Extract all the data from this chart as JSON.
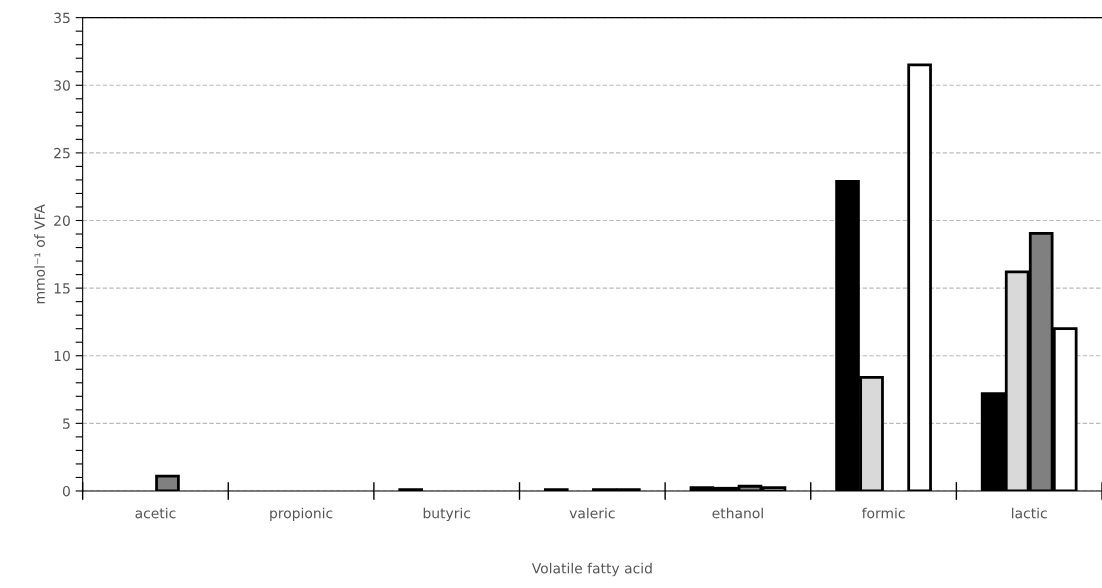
{
  "chart_data": {
    "type": "bar",
    "xlabel": "Volatile fatty acid",
    "ylabel": "mmol⁻¹ of VFA",
    "categories": [
      "acetic",
      "propionic",
      "butyric",
      "valeric",
      "ethanol",
      "formic",
      "lactic"
    ],
    "series": [
      {
        "color": "#000000",
        "values": [
          null,
          null,
          0.1,
          0.1,
          0.25,
          22.9,
          7.2
        ]
      },
      {
        "color": "#d9d9d9",
        "values": [
          null,
          null,
          null,
          null,
          0.2,
          8.4,
          16.2
        ]
      },
      {
        "color": "#808080",
        "values": [
          1.1,
          null,
          null,
          0.1,
          0.35,
          null,
          19.05
        ]
      },
      {
        "color": "#ffffff",
        "values": [
          null,
          null,
          null,
          0.1,
          0.25,
          31.5,
          12.0
        ]
      }
    ],
    "ylim": [
      0,
      35
    ],
    "yticks": [
      0,
      {
        "value": 1,
        "label": null
      },
      {
        "value": 2,
        "label": null
      },
      {
        "value": 3,
        "label": null
      },
      {
        "value": 4,
        "label": null
      },
      5,
      {
        "value": 6,
        "label": null
      },
      {
        "value": 7,
        "label": null
      },
      {
        "value": 8,
        "label": null
      },
      {
        "value": 9,
        "label": null
      },
      10,
      {
        "value": 11,
        "label": null
      },
      {
        "value": 12,
        "label": null
      },
      {
        "value": 13,
        "label": null
      },
      {
        "value": 14,
        "label": null
      },
      15,
      {
        "value": 16,
        "label": null
      },
      {
        "value": 17,
        "label": null
      },
      {
        "value": 18,
        "label": null
      },
      {
        "value": 19,
        "label": null
      },
      20,
      {
        "value": 21,
        "label": null
      },
      {
        "value": 22,
        "label": null
      },
      {
        "value": 23,
        "label": null
      },
      {
        "value": 24,
        "label": null
      },
      25,
      {
        "value": 26,
        "label": null
      },
      {
        "value": 27,
        "label": null
      },
      {
        "value": 28,
        "label": null
      },
      {
        "value": 29,
        "label": null
      },
      30,
      {
        "value": 31,
        "label": null
      },
      {
        "value": 32,
        "label": null
      },
      {
        "value": 33,
        "label": null
      },
      {
        "value": 34,
        "label": null
      },
      35
    ],
    "grid": "y"
  }
}
